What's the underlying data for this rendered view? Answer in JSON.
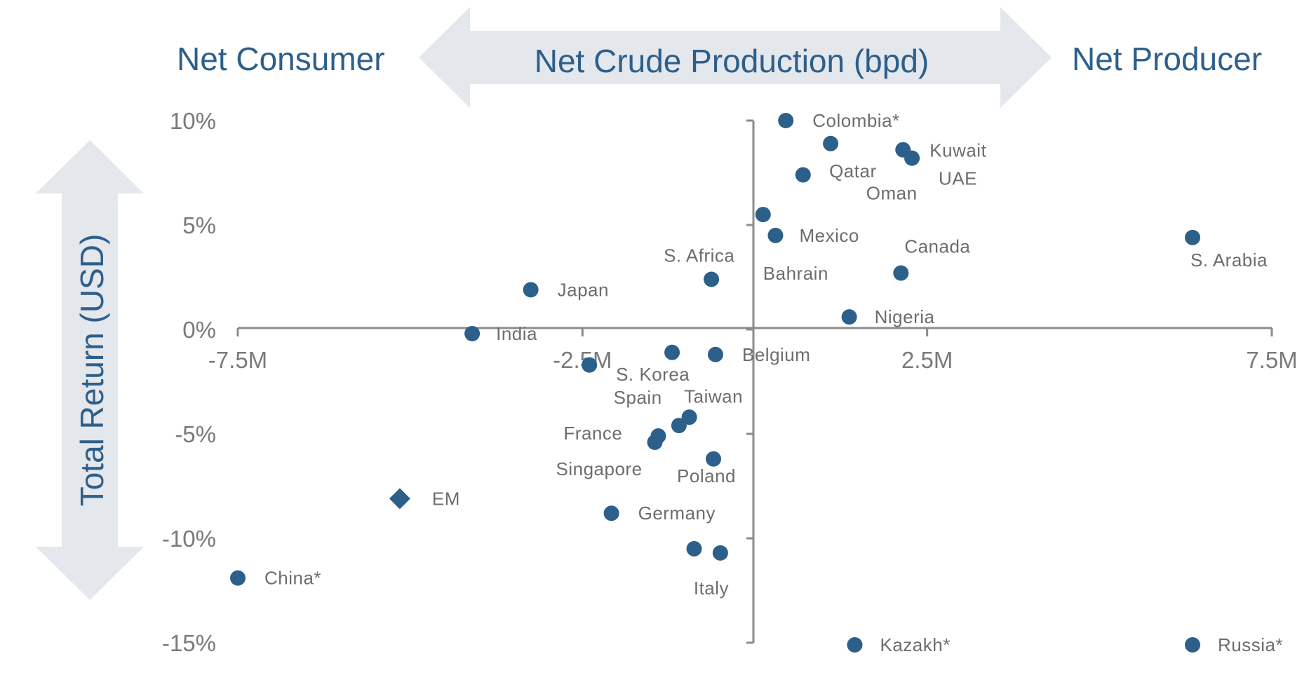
{
  "header": {
    "left_label": "Net Consumer",
    "center_label": "Net Crude Production (bpd)",
    "right_label": "Net Producer",
    "arrow_color": "#e4e7ec",
    "text_color": "#2d5f8b"
  },
  "chart_data": {
    "type": "scatter",
    "xlabel": "Net Crude Production (bpd)",
    "ylabel": "Total Return (USD)",
    "x_unit": "M bpd",
    "xlim": [
      -7.5,
      7.5
    ],
    "ylim": [
      -15,
      10
    ],
    "x_ticks": [
      {
        "value": -7.5,
        "label": "-7.5M"
      },
      {
        "value": -2.5,
        "label": "-2.5M"
      },
      {
        "value": 2.5,
        "label": "2.5M"
      },
      {
        "value": 7.5,
        "label": "7.5M"
      }
    ],
    "y_ticks": [
      {
        "value": 10,
        "label": "10%"
      },
      {
        "value": 5,
        "label": "5%"
      },
      {
        "value": 0,
        "label": "0%"
      },
      {
        "value": -5,
        "label": "-5%"
      },
      {
        "value": -10,
        "label": "-10%"
      },
      {
        "value": -15,
        "label": "-15%"
      }
    ],
    "marker_color": "#2d5f8b",
    "axis_color": "#8c8c8c",
    "points": [
      {
        "label": "Colombia*",
        "x": 0.45,
        "y": 10.0
      },
      {
        "label": "Qatar",
        "x": 1.1,
        "y": 8.9
      },
      {
        "label": "Kuwait",
        "x": 2.15,
        "y": 8.6
      },
      {
        "label": "UAE",
        "x": 2.28,
        "y": 8.2
      },
      {
        "label": "Oman",
        "x": 0.7,
        "y": 7.4
      },
      {
        "label": "Bahrain",
        "x": 0.12,
        "y": 5.5
      },
      {
        "label": "Mexico",
        "x": 0.3,
        "y": 4.5
      },
      {
        "label": "S. Arabia",
        "x": 6.35,
        "y": 4.4
      },
      {
        "label": "Canada",
        "x": 2.12,
        "y": 2.7
      },
      {
        "label": "S. Africa",
        "x": -0.63,
        "y": 2.4
      },
      {
        "label": "Japan",
        "x": -3.25,
        "y": 1.9
      },
      {
        "label": "Nigeria",
        "x": 1.37,
        "y": 0.6
      },
      {
        "label": "India",
        "x": -4.1,
        "y": -0.2
      },
      {
        "label": "S. Korea",
        "x": -1.2,
        "y": -1.1
      },
      {
        "label": "Belgium",
        "x": -0.57,
        "y": -1.2
      },
      {
        "label": "Taiwan",
        "x": -2.4,
        "y": -1.7
      },
      {
        "label": "Spain",
        "x": -0.95,
        "y": -4.2
      },
      {
        "label": "France",
        "x": -1.4,
        "y": -5.1
      },
      {
        "label": "Singapore",
        "x": -1.45,
        "y": -5.4
      },
      {
        "label": "Poland",
        "x": -0.6,
        "y": -6.2
      },
      {
        "label": "EM",
        "x": -5.15,
        "y": -8.1,
        "marker": "diamond"
      },
      {
        "label": "Germany",
        "x": -2.08,
        "y": -8.8
      },
      {
        "label": "China*",
        "x": -7.5,
        "y": -11.9
      },
      {
        "label": "Italy",
        "x": -0.5,
        "y": -10.7
      },
      {
        "label": "Kazakh*",
        "x": 1.45,
        "y": -15.1
      },
      {
        "label": "Russia*",
        "x": 6.35,
        "y": -15.1
      }
    ],
    "extra_markers": [
      {
        "x": -1.1,
        "y": -4.6
      },
      {
        "x": -0.88,
        "y": -10.5
      }
    ]
  }
}
